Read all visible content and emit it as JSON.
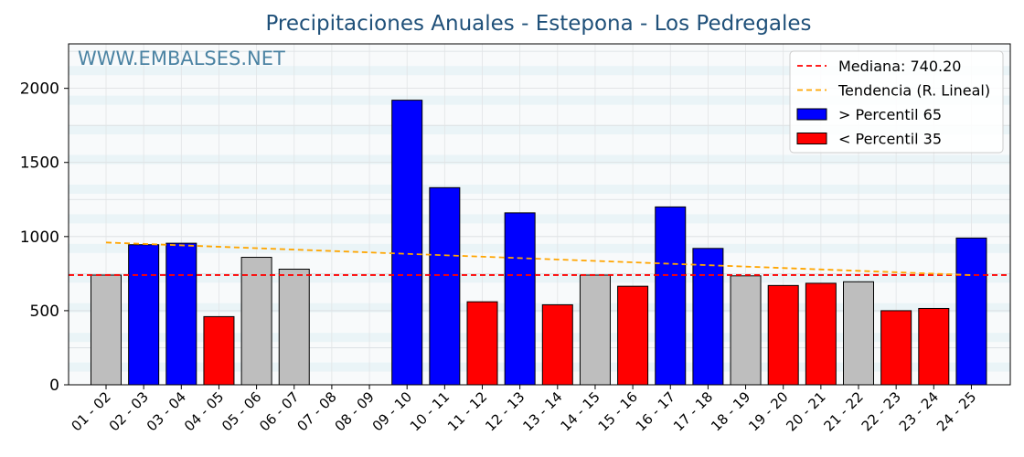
{
  "chart_data": {
    "type": "bar",
    "title": "Precipitaciones Anuales - Estepona - Los Pedregales",
    "watermark": "WWW.EMBALSES.NET",
    "xlabel": "",
    "ylabel": "",
    "ylim": [
      0,
      2300
    ],
    "yticks": [
      0,
      500,
      1000,
      1500,
      2000
    ],
    "grid": true,
    "legend_position": "top-right",
    "categories": [
      "01 - 02",
      "02 - 03",
      "03 - 04",
      "04 - 05",
      "05 - 06",
      "06 - 07",
      "07 - 08",
      "08 - 09",
      "09 - 10",
      "10 - 11",
      "11 - 12",
      "12 - 13",
      "13 - 14",
      "14 - 15",
      "15 - 16",
      "16 - 17",
      "17 - 18",
      "18 - 19",
      "19 - 20",
      "20 - 21",
      "21 - 22",
      "22 - 23",
      "23 - 24",
      "24 - 25"
    ],
    "values": [
      740,
      945,
      955,
      460,
      860,
      780,
      null,
      null,
      1920,
      1330,
      560,
      1160,
      540,
      740,
      665,
      1200,
      920,
      735,
      670,
      685,
      695,
      500,
      515,
      990
    ],
    "bar_class": [
      "mid",
      "high",
      "high",
      "low",
      "mid",
      "mid",
      "none",
      "none",
      "high",
      "high",
      "low",
      "high",
      "low",
      "mid",
      "low",
      "high",
      "high",
      "mid",
      "low",
      "low",
      "mid",
      "low",
      "low",
      "high"
    ],
    "colors": {
      "high": "#0000ff",
      "low": "#ff0000",
      "mid": "#bebebe",
      "median": "#ff0000",
      "trend": "#ffa500",
      "title": "#1f5079"
    },
    "median": 740.2,
    "trend": {
      "start": 960,
      "end": 740
    },
    "legend": [
      {
        "key": "median",
        "label": "Mediana: 740.20",
        "style": "dashed",
        "color": "#ff0000"
      },
      {
        "key": "trend",
        "label": "Tendencia (R. Lineal)",
        "style": "dashed",
        "color": "#ffa500"
      },
      {
        "key": "high",
        "label": " > Percentil 65",
        "style": "box",
        "color": "#0000ff"
      },
      {
        "key": "low",
        "label": " < Percentil 35",
        "style": "box",
        "color": "#ff0000"
      }
    ]
  }
}
